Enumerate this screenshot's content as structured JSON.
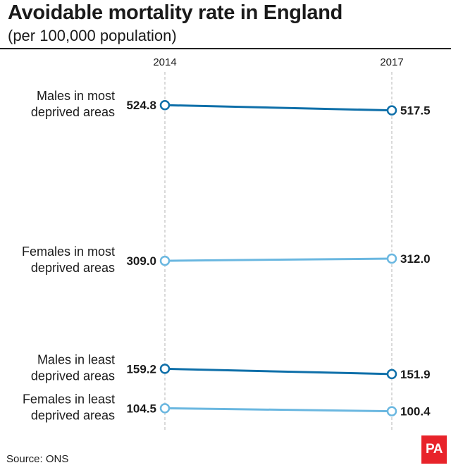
{
  "title": "Avoidable mortality rate in England",
  "subtitle": "(per 100,000 population)",
  "source": "Source: ONS",
  "logo": "PA",
  "chart_data": {
    "type": "line",
    "chart_style": "slope",
    "x": [
      "2014",
      "2017"
    ],
    "series": [
      {
        "name_lines": [
          "Males in most",
          "deprived areas"
        ],
        "name": "Males in most deprived areas",
        "values": [
          524.8,
          517.5
        ],
        "labels": [
          "524.8",
          "517.5"
        ],
        "color": "#0e6fa9"
      },
      {
        "name_lines": [
          "Females in most",
          "deprived areas"
        ],
        "name": "Females in most deprived areas",
        "values": [
          309.0,
          312.0
        ],
        "labels": [
          "309.0",
          "312.0"
        ],
        "color": "#6ab7e0"
      },
      {
        "name_lines": [
          "Males in least",
          "deprived areas"
        ],
        "name": "Males in least deprived areas",
        "values": [
          159.2,
          151.9
        ],
        "labels": [
          "159.2",
          "151.9"
        ],
        "color": "#0e6fa9"
      },
      {
        "name_lines": [
          "Females in least",
          "deprived areas"
        ],
        "name": "Females in least deprived areas",
        "values": [
          104.5,
          100.4
        ],
        "labels": [
          "104.5",
          "100.4"
        ],
        "color": "#6ab7e0"
      }
    ],
    "ylim": [
      100,
      525
    ],
    "xlabel": "",
    "ylabel": ""
  }
}
